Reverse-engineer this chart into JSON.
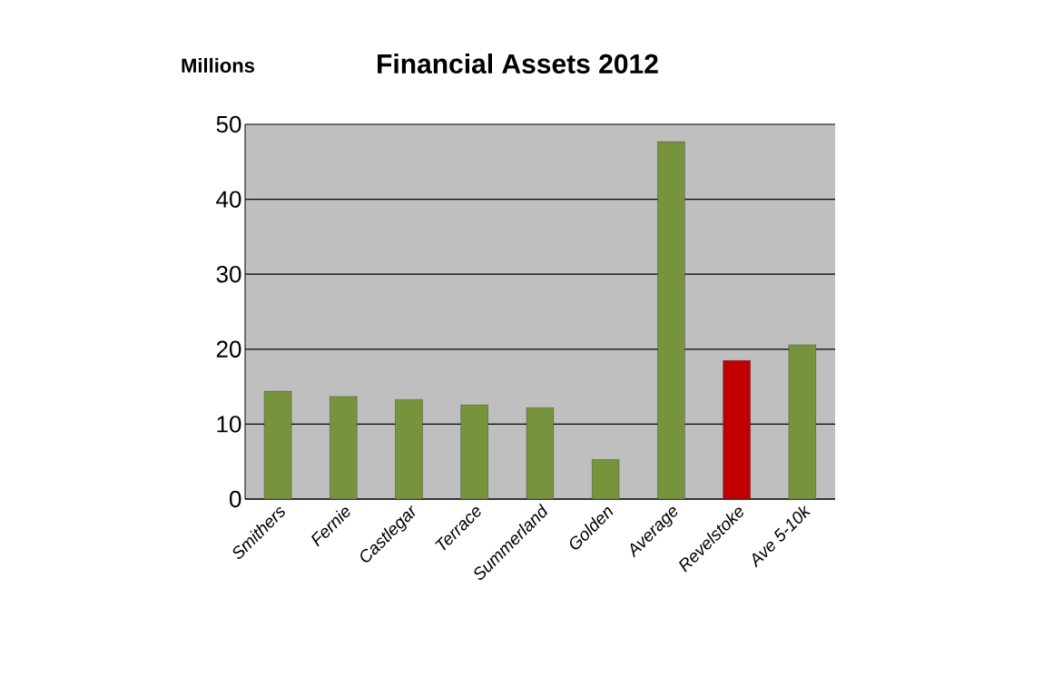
{
  "chart_data": {
    "type": "bar",
    "title": "Financial Assets 2012",
    "ylabel": "Millions",
    "categories": [
      "Smithers",
      "Fernie",
      "Castlegar",
      "Terrace",
      "Summerland",
      "Golden",
      "Average",
      "Revelstoke",
      "Ave 5-10k"
    ],
    "values": [
      14.4,
      13.7,
      13.3,
      12.6,
      12.2,
      5.3,
      47.7,
      18.5,
      20.6
    ],
    "colors": [
      "#77933c",
      "#77933c",
      "#77933c",
      "#77933c",
      "#77933c",
      "#77933c",
      "#77933c",
      "#c00000",
      "#77933c"
    ],
    "ylim": [
      0,
      50
    ],
    "yticks": [
      0,
      10,
      20,
      30,
      40,
      50
    ],
    "grid": "y"
  }
}
